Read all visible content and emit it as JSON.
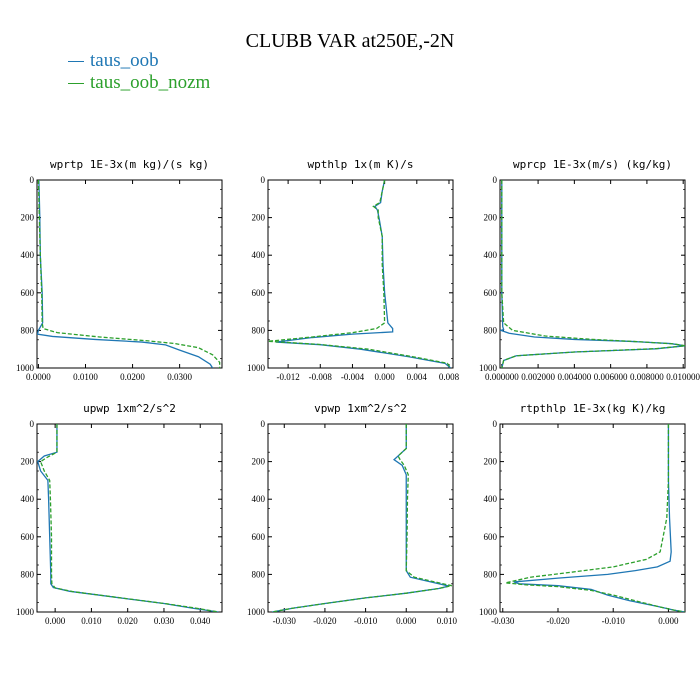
{
  "title": "CLUBB VAR at250E,-2N",
  "legend": [
    {
      "name": "taus_oob",
      "color": "#1f77b4"
    },
    {
      "name": "taus_oob_nozm",
      "color": "#2ca02c"
    }
  ],
  "chart_data": [
    {
      "type": "line",
      "title": "wprtp   1E-3x(m kg)/(s kg)",
      "xlim": [
        -0.0003,
        0.039
      ],
      "ylim": [
        1000,
        0
      ],
      "xticks": [
        "0.0000",
        "0.0100",
        "0.0200",
        "0.0300"
      ],
      "xtick_values": [
        0,
        0.01,
        0.02,
        0.03
      ],
      "yticks": [
        0,
        200,
        400,
        600,
        800,
        1000
      ],
      "series": [
        {
          "name": "taus_oob",
          "color": "#1f77b4",
          "dashed": false,
          "points": [
            [
              0.0001,
              0
            ],
            [
              0.0003,
              200
            ],
            [
              0.0004,
              400
            ],
            [
              0.0008,
              600
            ],
            [
              0.0009,
              760
            ],
            [
              0.0,
              800
            ],
            [
              -0.0002,
              820
            ],
            [
              0.003,
              832
            ],
            [
              0.012,
              848
            ],
            [
              0.022,
              862
            ],
            [
              0.027,
              877
            ],
            [
              0.03,
              905
            ],
            [
              0.034,
              940
            ],
            [
              0.0365,
              980
            ],
            [
              0.037,
              1000
            ]
          ]
        },
        {
          "name": "taus_oob_nozm",
          "color": "#2ca02c",
          "dashed": true,
          "points": [
            [
              0.0,
              0
            ],
            [
              0.0002,
              200
            ],
            [
              0.0004,
              400
            ],
            [
              0.0007,
              600
            ],
            [
              0.0008,
              760
            ],
            [
              0.001,
              790
            ],
            [
              0.004,
              812
            ],
            [
              0.013,
              835
            ],
            [
              0.023,
              855
            ],
            [
              0.029,
              870
            ],
            [
              0.034,
              892
            ],
            [
              0.037,
              930
            ],
            [
              0.0385,
              970
            ],
            [
              0.0385,
              1000
            ]
          ]
        }
      ]
    },
    {
      "type": "line",
      "title": "wpthlp   1x(m K)/s",
      "xlim": [
        -0.0145,
        0.0085
      ],
      "ylim": [
        1000,
        0
      ],
      "xticks": [
        "-0.012",
        "-0.008",
        "-0.004",
        "0.000",
        "0.004",
        "0.008"
      ],
      "xtick_values": [
        -0.012,
        -0.008,
        -0.004,
        0.0,
        0.004,
        0.008
      ],
      "yticks": [
        0,
        200,
        400,
        600,
        800,
        1000
      ],
      "series": [
        {
          "name": "taus_oob",
          "color": "#1f77b4",
          "dashed": false,
          "points": [
            [
              0.0,
              0
            ],
            [
              -0.0003,
              60
            ],
            [
              -0.0005,
              120
            ],
            [
              -0.0012,
              140
            ],
            [
              -0.0009,
              160
            ],
            [
              -0.0007,
              200
            ],
            [
              -0.0003,
              300
            ],
            [
              -0.0002,
              450
            ],
            [
              0.0,
              600
            ],
            [
              0.0004,
              760
            ],
            [
              0.001,
              790
            ],
            [
              0.001,
              808
            ],
            [
              -0.004,
              820
            ],
            [
              -0.009,
              838
            ],
            [
              -0.0135,
              862
            ],
            [
              -0.008,
              876
            ],
            [
              -0.003,
              900
            ],
            [
              0.003,
              940
            ],
            [
              0.0075,
              975
            ],
            [
              0.0082,
              1000
            ]
          ]
        },
        {
          "name": "taus_oob_nozm",
          "color": "#2ca02c",
          "dashed": true,
          "points": [
            [
              0.0,
              0
            ],
            [
              -0.0003,
              60
            ],
            [
              -0.0006,
              120
            ],
            [
              -0.0014,
              140
            ],
            [
              -0.0008,
              160
            ],
            [
              -0.0008,
              200
            ],
            [
              -0.0003,
              300
            ],
            [
              -0.0003,
              450
            ],
            [
              -0.0001,
              600
            ],
            [
              0.0,
              760
            ],
            [
              -0.001,
              790
            ],
            [
              -0.004,
              812
            ],
            [
              -0.009,
              835
            ],
            [
              -0.0145,
              858
            ],
            [
              -0.008,
              875
            ],
            [
              -0.002,
              900
            ],
            [
              0.0035,
              940
            ],
            [
              0.0078,
              975
            ],
            [
              0.0082,
              1000
            ]
          ]
        }
      ]
    },
    {
      "type": "line",
      "title": "wprcp   1E-3x(m/s) (kg/kg)",
      "xlim": [
        -0.0001,
        0.0101
      ],
      "ylim": [
        1000,
        0
      ],
      "xticks": [
        "0.000000",
        "0.002000",
        "0.004000",
        "0.006000",
        "0.008000",
        "0.010000"
      ],
      "xtick_values": [
        0,
        0.002,
        0.004,
        0.006,
        0.008,
        0.01
      ],
      "yticks": [
        0,
        200,
        400,
        600,
        800,
        1000
      ],
      "series": [
        {
          "name": "taus_oob",
          "color": "#1f77b4",
          "dashed": false,
          "points": [
            [
              0.0,
              0
            ],
            [
              0.0,
              600
            ],
            [
              5e-05,
              780
            ],
            [
              0.0001,
              795
            ],
            [
              -5e-05,
              800
            ],
            [
              0.0004,
              815
            ],
            [
              0.0018,
              835
            ],
            [
              0.004,
              848
            ],
            [
              0.007,
              858
            ],
            [
              0.0093,
              870
            ],
            [
              0.0101,
              882
            ],
            [
              0.0085,
              898
            ],
            [
              0.004,
              915
            ],
            [
              0.0008,
              935
            ],
            [
              0.0001,
              960
            ],
            [
              0.0,
              1000
            ]
          ]
        },
        {
          "name": "taus_oob_nozm",
          "color": "#2ca02c",
          "dashed": true,
          "points": [
            [
              0.0,
              0
            ],
            [
              0.0,
              600
            ],
            [
              0.0001,
              760
            ],
            [
              0.0006,
              800
            ],
            [
              0.0024,
              830
            ],
            [
              0.005,
              848
            ],
            [
              0.0075,
              860
            ],
            [
              0.0095,
              872
            ],
            [
              0.0101,
              882
            ],
            [
              0.0085,
              897
            ],
            [
              0.004,
              915
            ],
            [
              0.0008,
              935
            ],
            [
              0.0001,
              960
            ],
            [
              0.0,
              1000
            ]
          ]
        }
      ]
    },
    {
      "type": "line",
      "title": "upwp   1xm^2/s^2",
      "xlim": [
        -0.005,
        0.046
      ],
      "ylim": [
        1000,
        0
      ],
      "xticks": [
        "0.000",
        "0.010",
        "0.020",
        "0.030",
        "0.040"
      ],
      "xtick_values": [
        0,
        0.01,
        0.02,
        0.03,
        0.04
      ],
      "yticks": [
        0,
        200,
        400,
        600,
        800,
        1000
      ],
      "series": [
        {
          "name": "taus_oob",
          "color": "#1f77b4",
          "dashed": false,
          "points": [
            [
              0.0005,
              0
            ],
            [
              0.0005,
              150
            ],
            [
              -0.003,
              170
            ],
            [
              -0.0048,
              200
            ],
            [
              -0.004,
              250
            ],
            [
              -0.002,
              300
            ],
            [
              -0.0018,
              400
            ],
            [
              -0.0015,
              600
            ],
            [
              -0.0012,
              800
            ],
            [
              -0.0012,
              850
            ],
            [
              -0.0005,
              870
            ],
            [
              0.004,
              890
            ],
            [
              0.012,
              910
            ],
            [
              0.02,
              930
            ],
            [
              0.03,
              955
            ],
            [
              0.038,
              980
            ],
            [
              0.045,
              1000
            ]
          ]
        },
        {
          "name": "taus_oob_nozm",
          "color": "#2ca02c",
          "dashed": true,
          "points": [
            [
              0.0005,
              0
            ],
            [
              0.0005,
              150
            ],
            [
              -0.002,
              175
            ],
            [
              -0.004,
              200
            ],
            [
              -0.003,
              250
            ],
            [
              -0.0015,
              300
            ],
            [
              -0.0013,
              400
            ],
            [
              -0.001,
              600
            ],
            [
              -0.001,
              800
            ],
            [
              -0.0009,
              850
            ],
            [
              0.0,
              872
            ],
            [
              0.005,
              892
            ],
            [
              0.013,
              912
            ],
            [
              0.021,
              932
            ],
            [
              0.031,
              957
            ],
            [
              0.039,
              980
            ],
            [
              0.045,
              1000
            ]
          ]
        }
      ]
    },
    {
      "type": "line",
      "title": "vpwp   1xm^2/s^2",
      "xlim": [
        -0.034,
        0.0115
      ],
      "ylim": [
        1000,
        0
      ],
      "xticks": [
        "-0.030",
        "-0.020",
        "-0.010",
        "0.000",
        "0.010"
      ],
      "xtick_values": [
        -0.03,
        -0.02,
        -0.01,
        0.0,
        0.01
      ],
      "yticks": [
        0,
        200,
        400,
        600,
        800,
        1000
      ],
      "series": [
        {
          "name": "taus_oob",
          "color": "#1f77b4",
          "dashed": false,
          "points": [
            [
              0.0,
              0
            ],
            [
              0.0,
              130
            ],
            [
              -0.002,
              170
            ],
            [
              -0.003,
              190
            ],
            [
              -0.001,
              220
            ],
            [
              0.0,
              270
            ],
            [
              0.0,
              400
            ],
            [
              0.0,
              600
            ],
            [
              0.0,
              780
            ],
            [
              0.001,
              815
            ],
            [
              0.006,
              840
            ],
            [
              0.0105,
              862
            ],
            [
              0.008,
              875
            ],
            [
              0.0,
              900
            ],
            [
              -0.01,
              925
            ],
            [
              -0.02,
              955
            ],
            [
              -0.028,
              980
            ],
            [
              -0.033,
              1000
            ]
          ]
        },
        {
          "name": "taus_oob_nozm",
          "color": "#2ca02c",
          "dashed": true,
          "points": [
            [
              0.0,
              0
            ],
            [
              0.0,
              130
            ],
            [
              -0.002,
              170
            ],
            [
              -0.0015,
              190
            ],
            [
              -0.0005,
              220
            ],
            [
              0.0005,
              270
            ],
            [
              0.0003,
              400
            ],
            [
              0.0002,
              600
            ],
            [
              0.0,
              780
            ],
            [
              0.002,
              815
            ],
            [
              0.007,
              840
            ],
            [
              0.0112,
              860
            ],
            [
              0.008,
              875
            ],
            [
              0.0,
              900
            ],
            [
              -0.01,
              925
            ],
            [
              -0.02,
              955
            ],
            [
              -0.028,
              980
            ],
            [
              -0.033,
              1000
            ]
          ]
        }
      ]
    },
    {
      "type": "line",
      "title": "rtpthlp   1E-3x(kg K)/kg",
      "xlim": [
        -0.0305,
        0.003
      ],
      "ylim": [
        1000,
        0
      ],
      "xticks": [
        "-0.030",
        "-0.020",
        "-0.010",
        "0.000"
      ],
      "xtick_values": [
        -0.03,
        -0.02,
        -0.01,
        0.0
      ],
      "yticks": [
        0,
        200,
        400,
        600,
        800,
        1000
      ],
      "series": [
        {
          "name": "taus_oob",
          "color": "#1f77b4",
          "dashed": false,
          "points": [
            [
              0.0,
              0
            ],
            [
              0.0,
              300
            ],
            [
              0.0002,
              500
            ],
            [
              0.0005,
              680
            ],
            [
              0.0003,
              730
            ],
            [
              -0.002,
              760
            ],
            [
              -0.006,
              780
            ],
            [
              -0.011,
              800
            ],
            [
              -0.02,
              820
            ],
            [
              -0.028,
              840
            ],
            [
              -0.027,
              850
            ],
            [
              -0.02,
              860
            ],
            [
              -0.014,
              880
            ],
            [
              -0.011,
              910
            ],
            [
              -0.007,
              940
            ],
            [
              -0.002,
              970
            ],
            [
              0.001,
              990
            ],
            [
              0.003,
              1000
            ]
          ]
        },
        {
          "name": "taus_oob_nozm",
          "color": "#2ca02c",
          "dashed": true,
          "points": [
            [
              0.0,
              0
            ],
            [
              0.0,
              300
            ],
            [
              -0.0003,
              500
            ],
            [
              -0.0015,
              680
            ],
            [
              -0.004,
              720
            ],
            [
              -0.01,
              760
            ],
            [
              -0.018,
              790
            ],
            [
              -0.025,
              815
            ],
            [
              -0.0295,
              845
            ],
            [
              -0.026,
              855
            ],
            [
              -0.02,
              865
            ],
            [
              -0.014,
              885
            ],
            [
              -0.01,
              910
            ],
            [
              -0.006,
              940
            ],
            [
              -0.002,
              970
            ],
            [
              0.001,
              990
            ],
            [
              0.003,
              1000
            ]
          ]
        }
      ]
    }
  ]
}
